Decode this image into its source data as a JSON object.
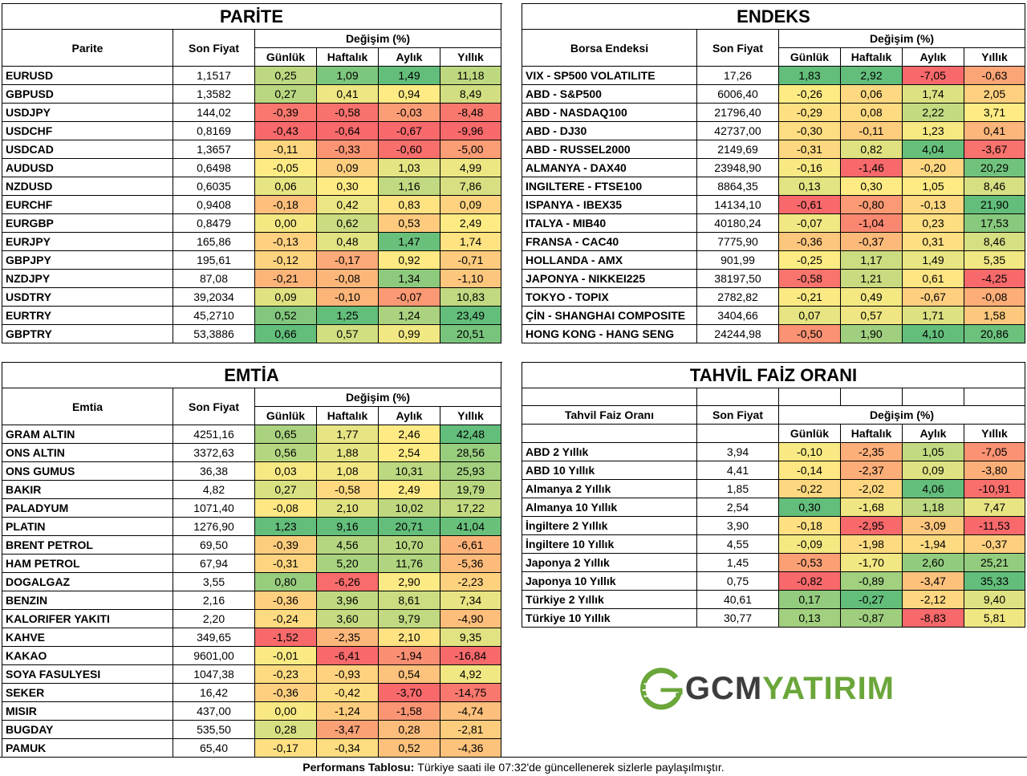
{
  "colors": {
    "green": "#63be7b",
    "yellow": "#ffeb84",
    "red": "#f8696b"
  },
  "parite": {
    "title": "PARİTE",
    "col_name": "Parite",
    "col_price": "Son Fiyat",
    "col_change": "Değişim (%)",
    "sub": [
      "Günlük",
      "Haftalık",
      "Aylık",
      "Yıllık"
    ],
    "rows": [
      {
        "name": "EURUSD",
        "price": "1,1517",
        "v": [
          "0,25",
          "1,09",
          "1,49",
          "11,18"
        ]
      },
      {
        "name": "GBPUSD",
        "price": "1,3582",
        "v": [
          "0,27",
          "0,41",
          "0,94",
          "8,49"
        ]
      },
      {
        "name": "USDJPY",
        "price": "144,02",
        "v": [
          "-0,39",
          "-0,58",
          "-0,03",
          "-8,48"
        ]
      },
      {
        "name": "USDCHF",
        "price": "0,8169",
        "v": [
          "-0,43",
          "-0,64",
          "-0,67",
          "-9,96"
        ]
      },
      {
        "name": "USDCAD",
        "price": "1,3657",
        "v": [
          "-0,11",
          "-0,33",
          "-0,60",
          "-5,00"
        ]
      },
      {
        "name": "AUDUSD",
        "price": "0,6498",
        "v": [
          "-0,05",
          "0,09",
          "1,03",
          "4,99"
        ]
      },
      {
        "name": "NZDUSD",
        "price": "0,6035",
        "v": [
          "0,06",
          "0,30",
          "1,16",
          "7,86"
        ]
      },
      {
        "name": "EURCHF",
        "price": "0,9408",
        "v": [
          "-0,18",
          "0,42",
          "0,83",
          "0,09"
        ]
      },
      {
        "name": "EURGBP",
        "price": "0,8479",
        "v": [
          "0,00",
          "0,62",
          "0,53",
          "2,49"
        ]
      },
      {
        "name": "EURJPY",
        "price": "165,86",
        "v": [
          "-0,13",
          "0,48",
          "1,47",
          "1,74"
        ]
      },
      {
        "name": "GBPJPY",
        "price": "195,61",
        "v": [
          "-0,12",
          "-0,17",
          "0,92",
          "-0,71"
        ]
      },
      {
        "name": "NZDJPY",
        "price": "87,08",
        "v": [
          "-0,21",
          "-0,08",
          "1,34",
          "-1,10"
        ]
      },
      {
        "name": "USDTRY",
        "price": "39,2034",
        "v": [
          "0,09",
          "-0,10",
          "-0,07",
          "10,83"
        ]
      },
      {
        "name": "EURTRY",
        "price": "45,2710",
        "v": [
          "0,52",
          "1,25",
          "1,24",
          "23,49"
        ]
      },
      {
        "name": "GBPTRY",
        "price": "53,3886",
        "v": [
          "0,66",
          "0,57",
          "0,99",
          "20,51"
        ]
      }
    ]
  },
  "endeks": {
    "title": "ENDEKS",
    "col_name": "Borsa Endeksi",
    "col_price": "Son Fiyat",
    "col_change": "Değişim (%)",
    "sub": [
      "Günlük",
      "Haftalık",
      "Aylık",
      "Yıllık"
    ],
    "rows": [
      {
        "name": "VIX  - SP500 VOLATILITE",
        "price": "17,26",
        "v": [
          "1,83",
          "2,92",
          "-7,05",
          "-0,63"
        ]
      },
      {
        "name": "ABD - S&P500",
        "price": "6006,40",
        "v": [
          "-0,26",
          "0,06",
          "1,74",
          "2,05"
        ]
      },
      {
        "name": "ABD - NASDAQ100",
        "price": "21796,40",
        "v": [
          "-0,29",
          "0,08",
          "2,22",
          "3,71"
        ]
      },
      {
        "name": "ABD - DJ30",
        "price": "42737,00",
        "v": [
          "-0,30",
          "-0,11",
          "1,23",
          "0,41"
        ]
      },
      {
        "name": "ABD - RUSSEL2000",
        "price": "2149,69",
        "v": [
          "-0,31",
          "0,82",
          "4,04",
          "-3,67"
        ]
      },
      {
        "name": "ALMANYA - DAX40",
        "price": "23948,90",
        "v": [
          "-0,16",
          "-1,46",
          "-0,20",
          "20,29"
        ]
      },
      {
        "name": "INGILTERE - FTSE100",
        "price": "8864,35",
        "v": [
          "0,13",
          "0,30",
          "1,05",
          "8,46"
        ]
      },
      {
        "name": "ISPANYA - IBEX35",
        "price": "14134,10",
        "v": [
          "-0,61",
          "-0,80",
          "-0,13",
          "21,90"
        ]
      },
      {
        "name": "ITALYA - MIB40",
        "price": "40180,24",
        "v": [
          "-0,07",
          "-1,04",
          "0,23",
          "17,53"
        ]
      },
      {
        "name": "FRANSA - CAC40",
        "price": "7775,90",
        "v": [
          "-0,36",
          "-0,37",
          "0,31",
          "8,46"
        ]
      },
      {
        "name": "HOLLANDA - AMX",
        "price": "901,99",
        "v": [
          "-0,25",
          "1,17",
          "1,49",
          "5,35"
        ]
      },
      {
        "name": "JAPONYA - NIKKEI225",
        "price": "38197,50",
        "v": [
          "-0,58",
          "1,21",
          "0,61",
          "-4,25"
        ]
      },
      {
        "name": "TOKYO - TOPIX",
        "price": "2782,82",
        "v": [
          "-0,21",
          "0,49",
          "-0,67",
          "-0,08"
        ]
      },
      {
        "name": "ÇİN - SHANGHAI COMPOSITE",
        "price": "3404,66",
        "v": [
          "0,07",
          "0,57",
          "1,71",
          "1,58"
        ]
      },
      {
        "name": "HONG KONG - HANG SENG",
        "price": "24244,98",
        "v": [
          "-0,50",
          "1,90",
          "4,10",
          "20,86"
        ]
      }
    ]
  },
  "emtia": {
    "title": "EMTİA",
    "col_name": "Emtia",
    "col_price": "Son Fiyat",
    "col_change": "Değişim (%)",
    "sub": [
      "Günlük",
      "Haftalık",
      "Aylık",
      "Yıllık"
    ],
    "rows": [
      {
        "name": "GRAM ALTIN",
        "price": "4251,16",
        "v": [
          "0,65",
          "1,77",
          "2,46",
          "42,48"
        ]
      },
      {
        "name": "ONS ALTIN",
        "price": "3372,63",
        "v": [
          "0,56",
          "1,88",
          "2,54",
          "28,56"
        ]
      },
      {
        "name": "ONS GUMUS",
        "price": "36,38",
        "v": [
          "0,03",
          "1,08",
          "10,31",
          "25,93"
        ]
      },
      {
        "name": "BAKIR",
        "price": "4,82",
        "v": [
          "0,27",
          "-0,58",
          "2,49",
          "19,79"
        ]
      },
      {
        "name": "PALADYUM",
        "price": "1071,40",
        "v": [
          "-0,08",
          "2,10",
          "10,02",
          "17,22"
        ]
      },
      {
        "name": "PLATIN",
        "price": "1276,90",
        "v": [
          "1,23",
          "9,16",
          "20,71",
          "41,04"
        ]
      },
      {
        "name": "BRENT PETROL",
        "price": "69,50",
        "v": [
          "-0,39",
          "4,56",
          "10,70",
          "-6,61"
        ]
      },
      {
        "name": "HAM PETROL",
        "price": "67,94",
        "v": [
          "-0,31",
          "5,20",
          "11,76",
          "-5,36"
        ]
      },
      {
        "name": "DOGALGAZ",
        "price": "3,55",
        "v": [
          "0,80",
          "-6,26",
          "2,90",
          "-2,23"
        ]
      },
      {
        "name": "BENZIN",
        "price": "2,16",
        "v": [
          "-0,36",
          "3,96",
          "8,61",
          "7,34"
        ]
      },
      {
        "name": "KALORIFER YAKITI",
        "price": "2,20",
        "v": [
          "-0,24",
          "3,60",
          "9,79",
          "-4,90"
        ]
      },
      {
        "name": "KAHVE",
        "price": "349,65",
        "v": [
          "-1,52",
          "-2,35",
          "2,10",
          "9,35"
        ]
      },
      {
        "name": "KAKAO",
        "price": "9601,00",
        "v": [
          "-0,01",
          "-6,41",
          "-1,94",
          "-16,84"
        ]
      },
      {
        "name": "SOYA FASULYESI",
        "price": "1047,38",
        "v": [
          "-0,23",
          "-0,93",
          "0,54",
          "4,92"
        ]
      },
      {
        "name": "SEKER",
        "price": "16,42",
        "v": [
          "-0,36",
          "-0,42",
          "-3,70",
          "-14,75"
        ]
      },
      {
        "name": "MISIR",
        "price": "437,00",
        "v": [
          "0,00",
          "-1,24",
          "-1,58",
          "-4,74"
        ]
      },
      {
        "name": "BUGDAY",
        "price": "535,50",
        "v": [
          "0,28",
          "-3,47",
          "0,28",
          "-2,81"
        ]
      },
      {
        "name": "PAMUK",
        "price": "65,40",
        "v": [
          "-0,17",
          "-0,34",
          "0,52",
          "-4,36"
        ]
      }
    ]
  },
  "tahvil": {
    "title": "TAHVİL FAİZ ORANI",
    "col_name": "Tahvil Faiz Oranı",
    "col_price": "Son Fiyat",
    "col_change": "Değişim (%)",
    "sub": [
      "Günlük",
      "Haftalık",
      "Aylık",
      "Yıllık"
    ],
    "rows": [
      {
        "name": "ABD 2 Yıllık",
        "price": "3,94",
        "v": [
          "-0,10",
          "-2,35",
          "1,05",
          "-7,05"
        ]
      },
      {
        "name": "ABD 10 Yıllık",
        "price": "4,41",
        "v": [
          "-0,14",
          "-2,37",
          "0,09",
          "-3,80"
        ]
      },
      {
        "name": "Almanya 2 Yıllık",
        "price": "1,85",
        "v": [
          "-0,22",
          "-2,02",
          "4,06",
          "-10,91"
        ]
      },
      {
        "name": "Almanya 10 Yıllık",
        "price": "2,54",
        "v": [
          "0,30",
          "-1,68",
          "1,18",
          "7,47"
        ]
      },
      {
        "name": "İngiltere 2 Yıllık",
        "price": "3,90",
        "v": [
          "-0,18",
          "-2,95",
          "-3,09",
          "-11,53"
        ]
      },
      {
        "name": "İngiltere 10 Yıllık",
        "price": "4,55",
        "v": [
          "-0,09",
          "-1,98",
          "-1,94",
          "-0,37"
        ]
      },
      {
        "name": "Japonya 2 Yıllık",
        "price": "1,45",
        "v": [
          "-0,53",
          "-1,70",
          "2,60",
          "25,21"
        ]
      },
      {
        "name": "Japonya 10 Yıllık",
        "price": "0,75",
        "v": [
          "-0,82",
          "-0,89",
          "-3,47",
          "35,33"
        ]
      },
      {
        "name": "Türkiye 2 Yıllık",
        "price": "40,61",
        "v": [
          "0,17",
          "-0,27",
          "-2,12",
          "9,40"
        ]
      },
      {
        "name": "Türkiye 10 Yıllık",
        "price": "30,77",
        "v": [
          "0,13",
          "-0,87",
          "-8,83",
          "5,81"
        ]
      }
    ]
  },
  "logo": {
    "left": "GCM",
    "right": "YATIRIM"
  },
  "footer": {
    "label": "Performans Tablosu:",
    "text": "Türkiye saati ile 07:32'de güncellenerek sizlerle paylaşılmıştır."
  }
}
